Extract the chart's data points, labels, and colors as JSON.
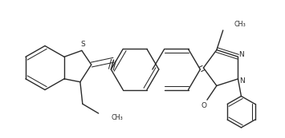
{
  "fig_width": 3.55,
  "fig_height": 1.73,
  "dpi": 100,
  "lc": "#2a2a2a",
  "lw": 1.0,
  "dlw": 0.75,
  "xlim": [
    0,
    355
  ],
  "ylim": [
    0,
    173
  ]
}
